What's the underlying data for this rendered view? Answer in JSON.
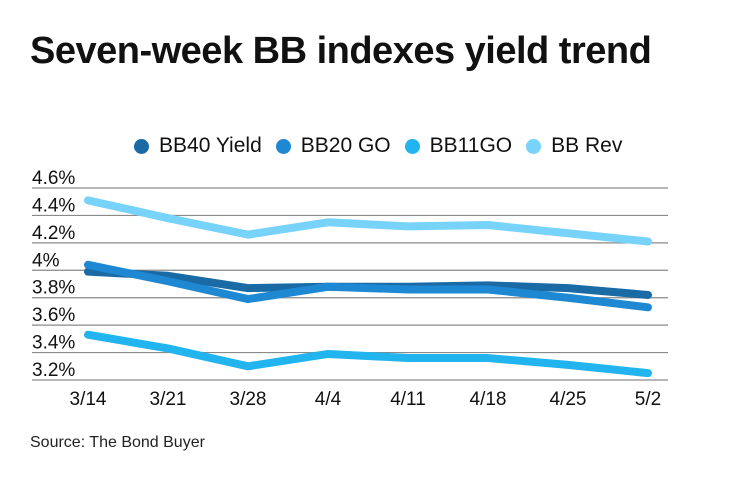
{
  "chart_data": {
    "type": "line",
    "title": "Seven-week BB indexes yield trend",
    "xlabel": "",
    "ylabel": "",
    "categories": [
      "3/14",
      "3/21",
      "3/28",
      "4/4",
      "4/11",
      "4/18",
      "4/25",
      "5/2"
    ],
    "y_ticks": [
      "4.6%",
      "4.4%",
      "4.2%",
      "4%",
      "3.8%",
      "3.6%",
      "3.4%",
      "3.2%"
    ],
    "ylim": [
      3.2,
      4.6
    ],
    "grid": true,
    "legend_position": "top",
    "series": [
      {
        "name": "BB40 Yield",
        "color": "#1a6aa6",
        "values": [
          3.99,
          3.96,
          3.87,
          3.88,
          3.88,
          3.89,
          3.87,
          3.82
        ]
      },
      {
        "name": "BB20 GO",
        "color": "#1e88d2",
        "values": [
          4.04,
          3.92,
          3.79,
          3.88,
          3.86,
          3.86,
          3.8,
          3.73
        ]
      },
      {
        "name": "BB11GO",
        "color": "#22b4ee",
        "values": [
          3.53,
          3.43,
          3.3,
          3.39,
          3.36,
          3.36,
          3.31,
          3.25
        ]
      },
      {
        "name": "BB Rev",
        "color": "#78d3fa",
        "values": [
          4.51,
          4.38,
          4.26,
          4.35,
          4.32,
          4.33,
          4.27,
          4.21
        ]
      }
    ]
  },
  "source": "Source: The Bond Buyer"
}
